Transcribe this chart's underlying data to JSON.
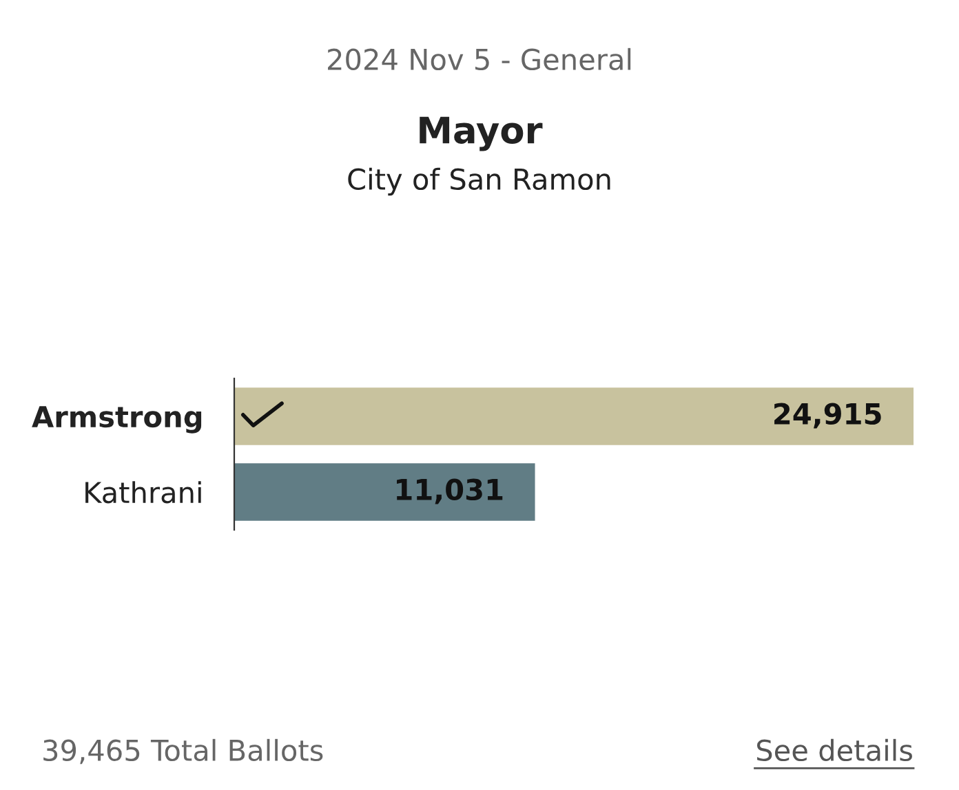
{
  "chart_data": {
    "type": "bar",
    "orientation": "horizontal",
    "title": "Mayor",
    "subtitle": "City of San Ramon",
    "categories": [
      "Armstrong",
      "Kathrani"
    ],
    "values": [
      24915,
      11031
    ],
    "colors": [
      "#c8c29e",
      "#617d85"
    ],
    "value_labels": [
      "24,915",
      "11,031"
    ],
    "grid": false,
    "legend": false,
    "annotations": [
      "2024 Nov 5 - General",
      "39,465 Total Ballots",
      "See details"
    ]
  }
}
